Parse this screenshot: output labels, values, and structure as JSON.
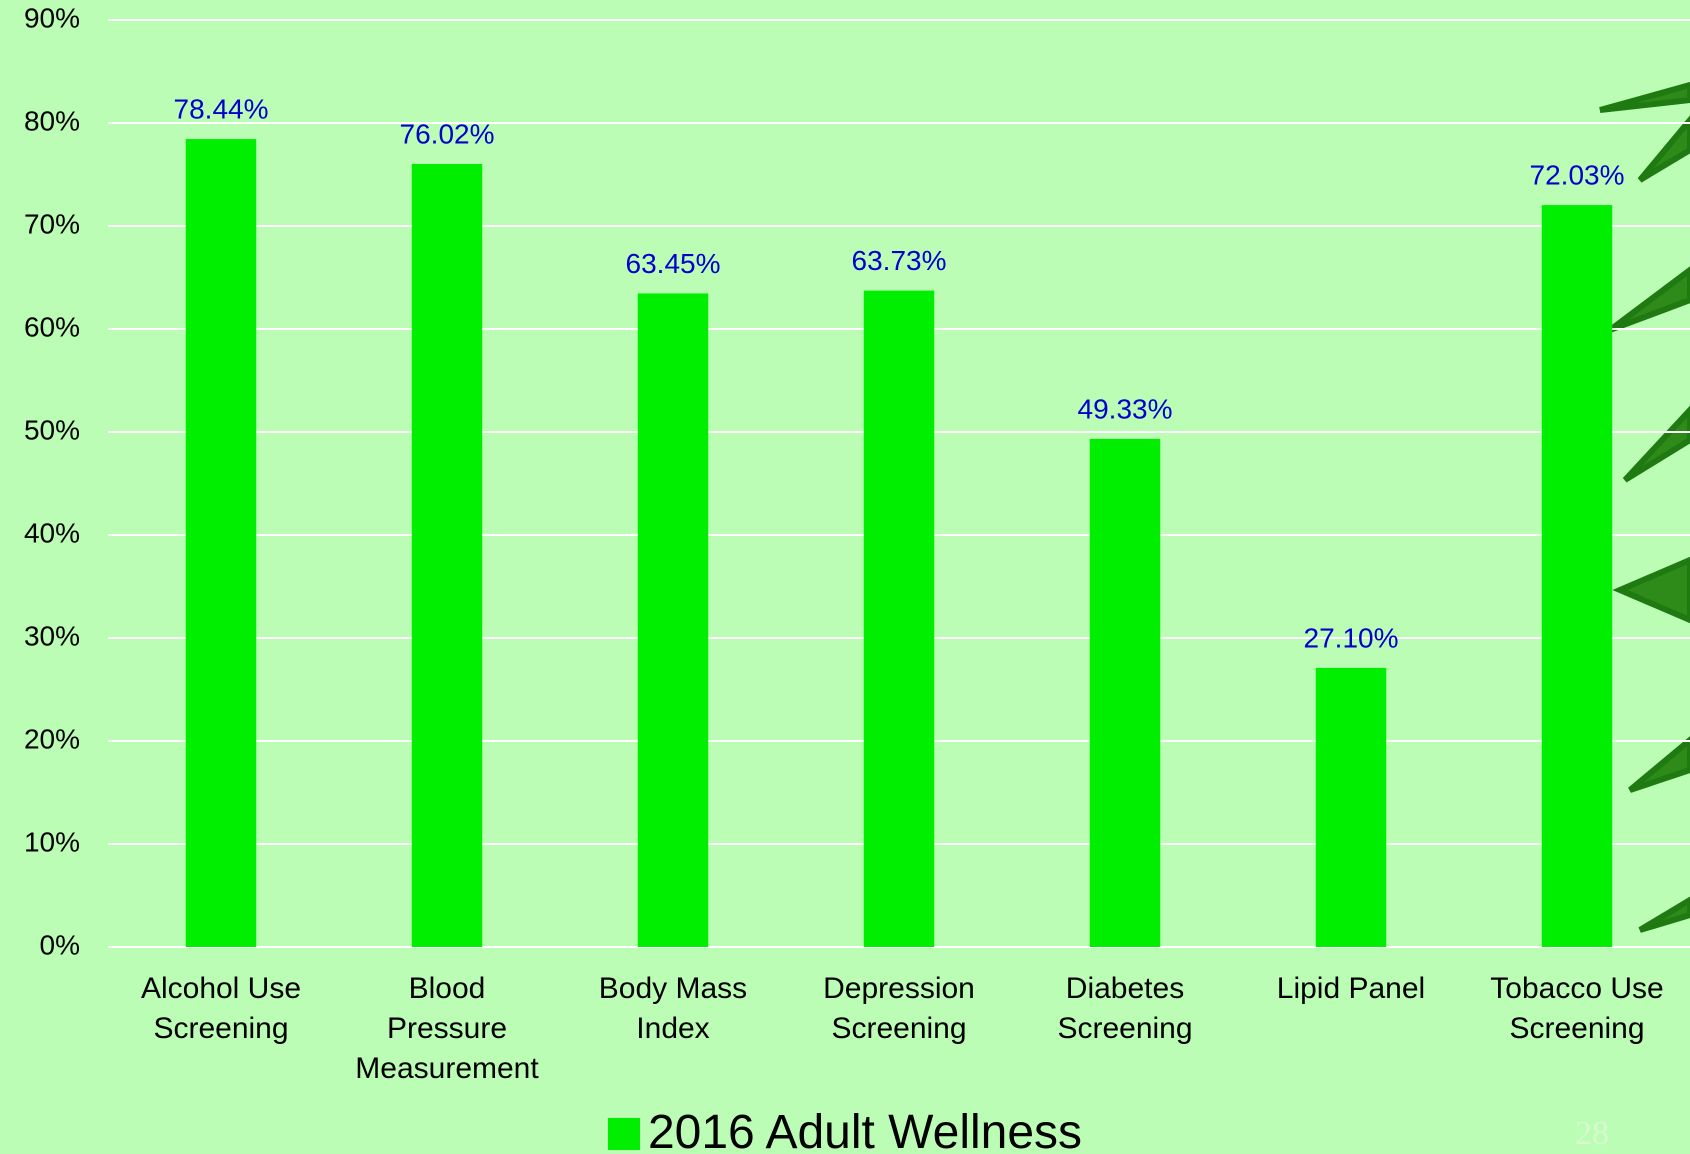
{
  "chart_data": {
    "type": "bar",
    "categories": [
      "Alcohol Use Screening",
      "Blood Pressure Measurement",
      "Body Mass Index",
      "Depression Screening",
      "Diabetes Screening",
      "Lipid Panel",
      "Tobacco Use Screening"
    ],
    "series": [
      {
        "name": "2016 Adult Wellness",
        "color": "#00ee00",
        "values": [
          78.44,
          76.02,
          63.45,
          63.73,
          49.33,
          27.1,
          72.03
        ],
        "value_labels": [
          "78.44%",
          "76.02%",
          "63.45%",
          "63.73%",
          "49.33%",
          "27.10%",
          "72.03%"
        ]
      }
    ],
    "ylim": [
      0,
      90
    ],
    "yticks": [
      {
        "value": 0,
        "label": "0%"
      },
      {
        "value": 10,
        "label": "10%"
      },
      {
        "value": 20,
        "label": "20%"
      },
      {
        "value": 30,
        "label": "30%"
      },
      {
        "value": 40,
        "label": "40%"
      },
      {
        "value": 50,
        "label": "50%"
      },
      {
        "value": 60,
        "label": "60%"
      },
      {
        "value": 70,
        "label": "70%"
      },
      {
        "value": 80,
        "label": "80%"
      },
      {
        "value": 90,
        "label": "90%"
      }
    ],
    "grid": true,
    "legend": "bottom",
    "slide_number": "28"
  }
}
